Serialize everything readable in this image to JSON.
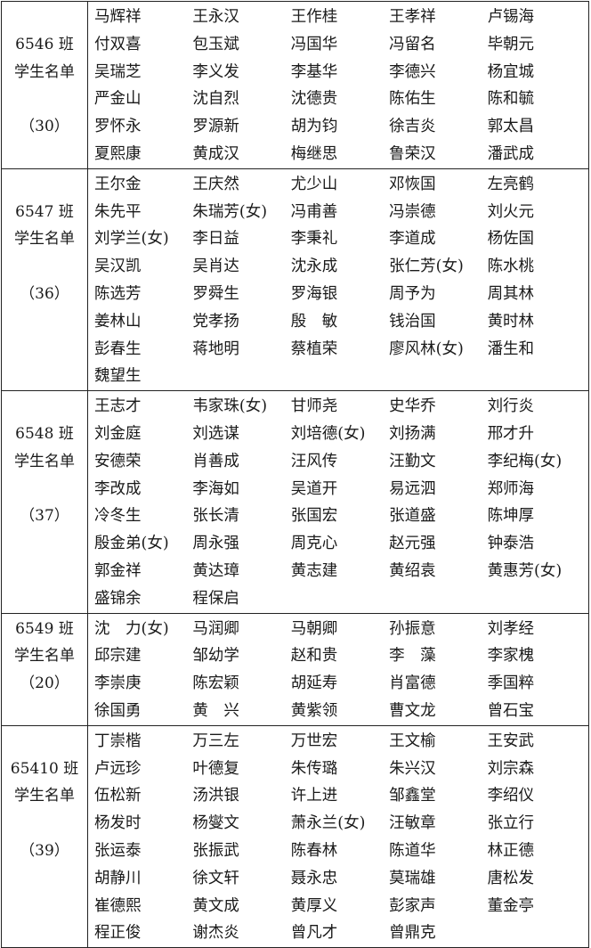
{
  "sections": [
    {
      "class_label": "6546 班",
      "list_label": "学生名单",
      "count_label": "（30）",
      "rows": [
        [
          "马辉祥",
          "王永汉",
          "王作桂",
          "王孝祥",
          "卢锡海"
        ],
        [
          "付双喜",
          "包玉斌",
          "冯国华",
          "冯留名",
          "毕朝元"
        ],
        [
          "吴瑞芝",
          "李义发",
          "李基华",
          "李德兴",
          "杨宜城"
        ],
        [
          "严金山",
          "沈自烈",
          "沈德贵",
          "陈佑生",
          "陈和毓"
        ],
        [
          "罗怀永",
          "罗源新",
          "胡为钧",
          "徐吉炎",
          "郭太昌"
        ],
        [
          "夏熙康",
          "黄成汉",
          "梅继思",
          "鲁荣汉",
          "潘武成"
        ]
      ]
    },
    {
      "class_label": "6547 班",
      "list_label": "学生名单",
      "count_label": "（36）",
      "rows": [
        [
          "王尔金",
          "王庆然",
          "尤少山",
          "邓恢国",
          "左亮鹤"
        ],
        [
          "朱先平",
          "朱瑞芳(女)",
          "冯甫善",
          "冯崇德",
          "刘火元"
        ],
        [
          "刘学兰(女)",
          "李日益",
          "李秉礼",
          "李道成",
          "杨佐国"
        ],
        [
          "吴汉凯",
          "吴肖达",
          "沈永成",
          "张仁芳(女)",
          "陈水桃"
        ],
        [
          "陈选芳",
          "罗舜生",
          "罗海银",
          "周予为",
          "周其林"
        ],
        [
          "姜林山",
          "党孝扬",
          "殷　敏",
          "钱治国",
          "黄时林"
        ],
        [
          "彭春生",
          "蒋地明",
          "蔡植荣",
          "廖风林(女)",
          "潘生和"
        ],
        [
          "魏望生"
        ]
      ]
    },
    {
      "class_label": "6548 班",
      "list_label": "学生名单",
      "count_label": "（37）",
      "rows": [
        [
          "王志才",
          "韦家珠(女)",
          "甘师尧",
          "史华乔",
          "刘行炎"
        ],
        [
          "刘金庭",
          "刘选谋",
          "刘培德(女)",
          "刘扬满",
          "邢才升"
        ],
        [
          "安德荣",
          "肖善成",
          "汪风传",
          "汪勤文",
          "李纪梅(女)"
        ],
        [
          "李改成",
          "李海如",
          "吴道开",
          "易远泗",
          "郑师海"
        ],
        [
          "冷冬生",
          "张长清",
          "张国宏",
          "张道盛",
          "陈坤厚"
        ],
        [
          "殷金弟(女)",
          "周永强",
          "周克心",
          "赵元强",
          "钟泰浩"
        ],
        [
          "郭金祥",
          "黄达璋",
          "黄志建",
          "黄绍袁",
          "黄惠芳(女)"
        ],
        [
          "盛锦余",
          "程保启"
        ]
      ]
    },
    {
      "class_label": "6549 班",
      "list_label": "学生名单",
      "count_label": "（20）",
      "rows": [
        [
          "沈　力(女)",
          "马润卿",
          "马朝卿",
          "孙振意",
          "刘孝经"
        ],
        [
          "邱宗建",
          "邹幼学",
          "赵和贵",
          "李　藻",
          "李家槐"
        ],
        [
          "李崇庚",
          "陈宏颖",
          "胡延寿",
          "肖富德",
          "季国粹"
        ],
        [
          "徐国勇",
          "黄　兴",
          "黄紫领",
          "曹文龙",
          "曾石宝"
        ]
      ]
    },
    {
      "class_label": "65410 班",
      "list_label": "学生名单",
      "count_label": "（39）",
      "rows": [
        [
          "丁崇楷",
          "万三左",
          "万世宏",
          "王文榆",
          "王安武"
        ],
        [
          "卢远珍",
          "叶德复",
          "朱传璐",
          "朱兴汉",
          "刘宗森"
        ],
        [
          "伍松新",
          "汤洪银",
          "许上进",
          "邹鑫堂",
          "李绍仪"
        ],
        [
          "杨发时",
          "杨燮文",
          "萧永兰(女)",
          "汪敏章",
          "张立行"
        ],
        [
          "张运泰",
          "张振武",
          "陈春林",
          "陈道华",
          "林正德"
        ],
        [
          "胡静川",
          "徐文轩",
          "聂永忠",
          "莫瑞雄",
          "唐松发"
        ],
        [
          "崔德熙",
          "黄文成",
          "黄厚义",
          "彭家声",
          "董金亭"
        ],
        [
          "程正俊",
          "谢杰炎",
          "曾凡才",
          "曾鼎克"
        ]
      ]
    }
  ]
}
